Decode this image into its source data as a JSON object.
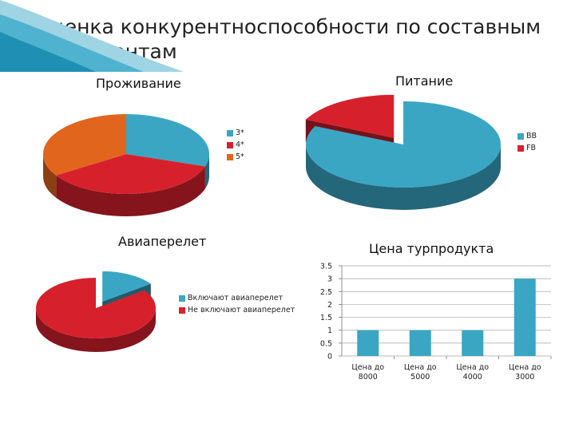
{
  "slide": {
    "title": "Оценка конкурентноспособности по составным компонентам"
  },
  "colors": {
    "blue": "#3aa6c4",
    "red": "#d6212d",
    "orange": "#e2651d",
    "gray": "#a7a7a7"
  },
  "chart_data": [
    {
      "type": "pie",
      "title": "Проживание",
      "labels": [
        "3*",
        "4*",
        "5*"
      ],
      "values": [
        30,
        36,
        34
      ],
      "legend": "right"
    },
    {
      "type": "pie",
      "title": "Питание",
      "labels": [
        "BB",
        "FB"
      ],
      "values": [
        82,
        18
      ],
      "legend": "right"
    },
    {
      "type": "pie",
      "title": "Авиаперелет",
      "labels": [
        "Включают авиаперелет",
        "Не включают авиаперелет"
      ],
      "values": [
        15,
        85
      ],
      "legend": "right"
    },
    {
      "type": "bar",
      "title": "Цена турпродукта",
      "categories": [
        "Цена до 8000",
        "Цена до 5000",
        "Цена до 4000",
        "Цена до 3000"
      ],
      "values": [
        1,
        1,
        1,
        3
      ],
      "ylim": [
        0,
        3.5
      ],
      "yticks": [
        "0",
        "0.5",
        "1",
        "1.5",
        "2",
        "2.5",
        "3",
        "3.5"
      ],
      "grid": true
    }
  ]
}
